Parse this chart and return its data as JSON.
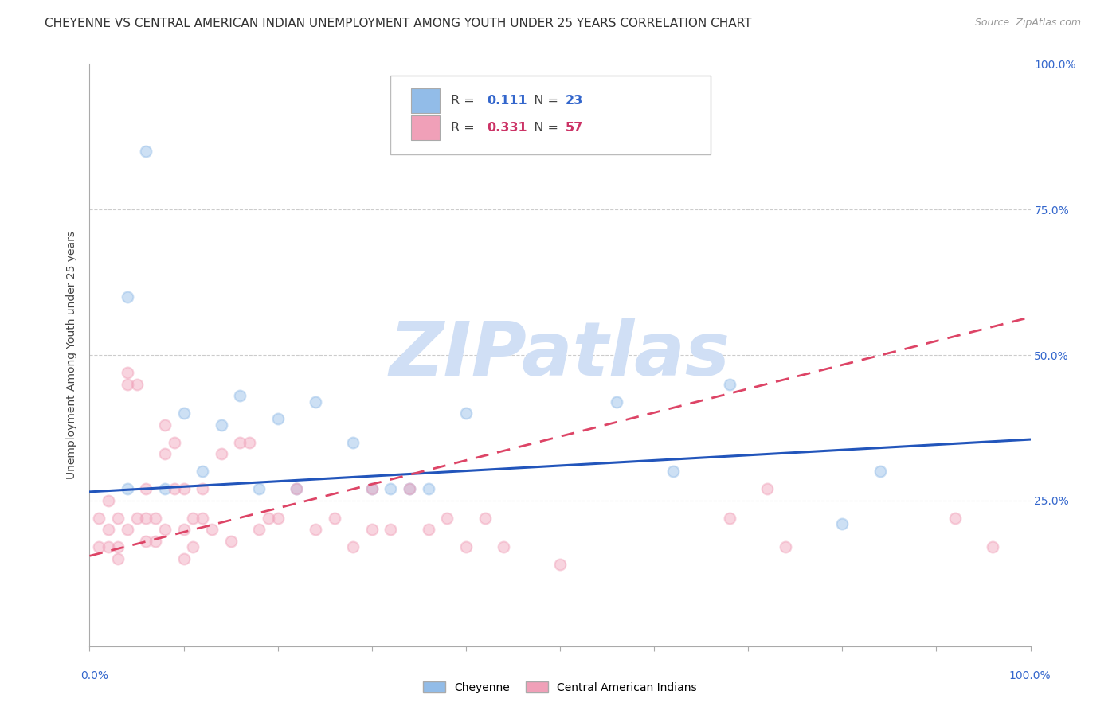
{
  "title": "CHEYENNE VS CENTRAL AMERICAN INDIAN UNEMPLOYMENT AMONG YOUTH UNDER 25 YEARS CORRELATION CHART",
  "source": "Source: ZipAtlas.com",
  "ylabel": "Unemployment Among Youth under 25 years",
  "legend_r1_val": "0.111",
  "legend_n1_val": "23",
  "legend_r2_val": "0.331",
  "legend_n2_val": "57",
  "cheyenne_color": "#92bce8",
  "central_color": "#f0a0b8",
  "cheyenne_line_color": "#2255bb",
  "central_line_color": "#dd4466",
  "background_color": "#ffffff",
  "watermark_text": "ZIPatlas",
  "watermark_color": "#d0dff5",
  "cheyenne_label": "Cheyenne",
  "central_label": "Central American Indians",
  "cheyenne_x": [
    0.04,
    0.04,
    0.06,
    0.08,
    0.1,
    0.12,
    0.14,
    0.16,
    0.18,
    0.2,
    0.22,
    0.24,
    0.28,
    0.3,
    0.32,
    0.34,
    0.36,
    0.4,
    0.56,
    0.62,
    0.68,
    0.8,
    0.84
  ],
  "cheyenne_y": [
    0.27,
    0.6,
    0.85,
    0.27,
    0.4,
    0.3,
    0.38,
    0.43,
    0.27,
    0.39,
    0.27,
    0.42,
    0.35,
    0.27,
    0.27,
    0.27,
    0.27,
    0.4,
    0.42,
    0.3,
    0.45,
    0.21,
    0.3
  ],
  "central_x": [
    0.01,
    0.01,
    0.02,
    0.02,
    0.02,
    0.03,
    0.03,
    0.03,
    0.04,
    0.04,
    0.04,
    0.05,
    0.05,
    0.06,
    0.06,
    0.06,
    0.07,
    0.07,
    0.08,
    0.08,
    0.08,
    0.09,
    0.09,
    0.1,
    0.1,
    0.1,
    0.11,
    0.11,
    0.12,
    0.12,
    0.13,
    0.14,
    0.15,
    0.16,
    0.17,
    0.18,
    0.19,
    0.2,
    0.22,
    0.24,
    0.26,
    0.28,
    0.3,
    0.3,
    0.32,
    0.34,
    0.36,
    0.38,
    0.4,
    0.42,
    0.44,
    0.5,
    0.68,
    0.72,
    0.74,
    0.92,
    0.96
  ],
  "central_y": [
    0.17,
    0.22,
    0.17,
    0.2,
    0.25,
    0.15,
    0.17,
    0.22,
    0.45,
    0.47,
    0.2,
    0.45,
    0.22,
    0.18,
    0.22,
    0.27,
    0.18,
    0.22,
    0.2,
    0.38,
    0.33,
    0.35,
    0.27,
    0.2,
    0.27,
    0.15,
    0.22,
    0.17,
    0.22,
    0.27,
    0.2,
    0.33,
    0.18,
    0.35,
    0.35,
    0.2,
    0.22,
    0.22,
    0.27,
    0.2,
    0.22,
    0.17,
    0.2,
    0.27,
    0.2,
    0.27,
    0.2,
    0.22,
    0.17,
    0.22,
    0.17,
    0.14,
    0.22,
    0.27,
    0.17,
    0.22,
    0.17
  ],
  "chey_line_x0": 0.0,
  "chey_line_y0": 0.265,
  "chey_line_x1": 1.0,
  "chey_line_y1": 0.355,
  "cent_line_x0": 0.0,
  "cent_line_y0": 0.155,
  "cent_line_x1": 1.0,
  "cent_line_y1": 0.565,
  "xlim": [
    0.0,
    1.0
  ],
  "ylim": [
    0.0,
    1.0
  ],
  "marker_size": 100,
  "marker_alpha": 0.45,
  "grid_color": "#cccccc",
  "title_fontsize": 11,
  "axis_label_fontsize": 10,
  "tick_fontsize": 10
}
